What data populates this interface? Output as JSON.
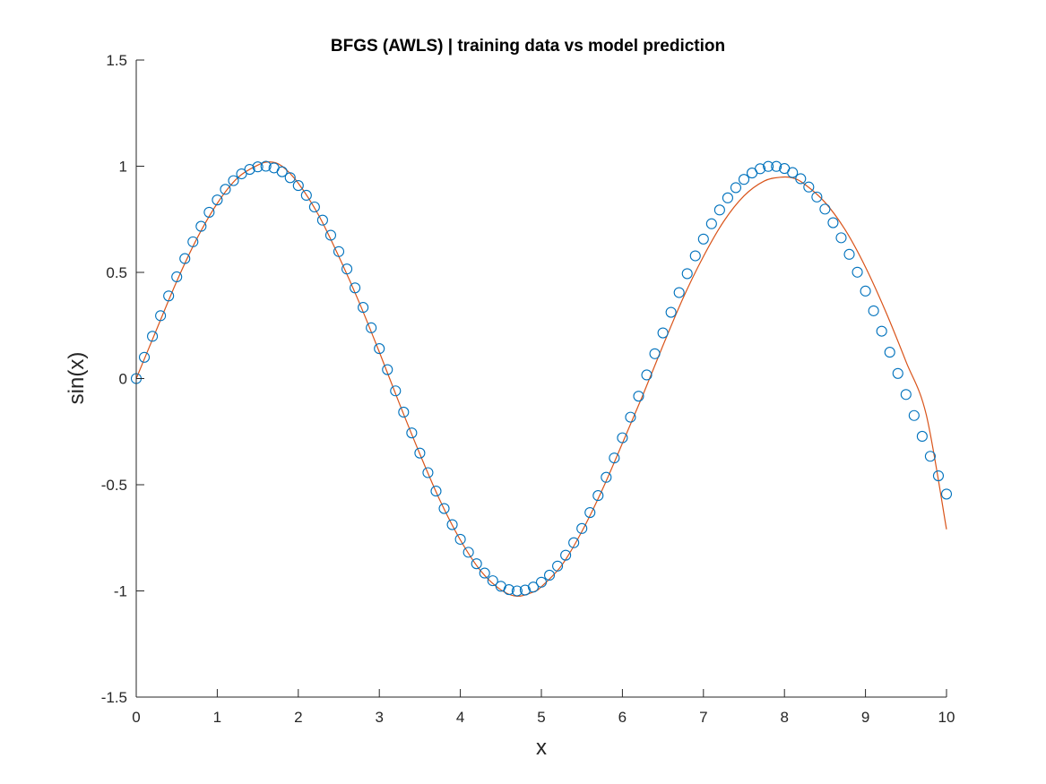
{
  "chart_data": {
    "type": "scatter",
    "title": "BFGS (AWLS) | training data vs model prediction",
    "xlabel": "x",
    "ylabel": "sin(x)",
    "xlim": [
      0,
      10
    ],
    "ylim": [
      -1.5,
      1.5
    ],
    "xticks": [
      "0",
      "1",
      "2",
      "3",
      "4",
      "5",
      "6",
      "7",
      "8",
      "9",
      "10"
    ],
    "yticks": [
      "1.5",
      "1",
      "0.5",
      "0",
      "-0.5",
      "-1",
      "-1.5"
    ],
    "grid": false,
    "legend": "none",
    "series": [
      {
        "kind": "scatter",
        "marker": "circle-open",
        "color": "#0072BD",
        "x": [
          0,
          0.1,
          0.2,
          0.3,
          0.4,
          0.5,
          0.6,
          0.7,
          0.8,
          0.9,
          1.0,
          1.1,
          1.2,
          1.3,
          1.4,
          1.5,
          1.6,
          1.7,
          1.8,
          1.9,
          2.0,
          2.1,
          2.2,
          2.3,
          2.4,
          2.5,
          2.6,
          2.7,
          2.8,
          2.9,
          3.0,
          3.1,
          3.2,
          3.3,
          3.4,
          3.5,
          3.6,
          3.7,
          3.8,
          3.9,
          4.0,
          4.1,
          4.2,
          4.3,
          4.4,
          4.5,
          4.6,
          4.7,
          4.8,
          4.9,
          5.0,
          5.1,
          5.2,
          5.3,
          5.4,
          5.5,
          5.6,
          5.7,
          5.8,
          5.9,
          6.0,
          6.1,
          6.2,
          6.3,
          6.4,
          6.5,
          6.6,
          6.7,
          6.8,
          6.9,
          7.0,
          7.1,
          7.2,
          7.3,
          7.4,
          7.5,
          7.6,
          7.7,
          7.8,
          7.9,
          8.0,
          8.1,
          8.2,
          8.3,
          8.4,
          8.5,
          8.6,
          8.7,
          8.8,
          8.9,
          9.0,
          9.1,
          9.2,
          9.3,
          9.4,
          9.5,
          9.6,
          9.7,
          9.8,
          9.9,
          10.0
        ],
        "y": [
          0.0,
          0.1,
          0.199,
          0.296,
          0.389,
          0.479,
          0.565,
          0.644,
          0.717,
          0.783,
          0.841,
          0.891,
          0.932,
          0.964,
          0.985,
          0.997,
          1.0,
          0.992,
          0.974,
          0.946,
          0.909,
          0.863,
          0.808,
          0.746,
          0.675,
          0.598,
          0.516,
          0.427,
          0.335,
          0.239,
          0.141,
          0.042,
          -0.058,
          -0.158,
          -0.256,
          -0.351,
          -0.443,
          -0.53,
          -0.612,
          -0.688,
          -0.757,
          -0.818,
          -0.872,
          -0.916,
          -0.952,
          -0.978,
          -0.994,
          -1.0,
          -0.996,
          -0.982,
          -0.959,
          -0.926,
          -0.883,
          -0.832,
          -0.773,
          -0.706,
          -0.631,
          -0.551,
          -0.465,
          -0.374,
          -0.279,
          -0.182,
          -0.083,
          0.017,
          0.117,
          0.215,
          0.312,
          0.405,
          0.494,
          0.578,
          0.657,
          0.729,
          0.794,
          0.851,
          0.899,
          0.938,
          0.968,
          0.988,
          0.999,
          0.999,
          0.989,
          0.97,
          0.941,
          0.902,
          0.855,
          0.798,
          0.734,
          0.663,
          0.585,
          0.501,
          0.412,
          0.319,
          0.223,
          0.124,
          0.024,
          -0.075,
          -0.174,
          -0.272,
          -0.366,
          -0.458,
          -0.544
        ]
      },
      {
        "kind": "line",
        "color": "#D95319",
        "x": [
          0,
          0.25,
          0.5,
          0.75,
          1.0,
          1.25,
          1.5,
          1.65,
          1.8,
          2.0,
          2.25,
          2.5,
          2.75,
          3.0,
          3.25,
          3.5,
          3.75,
          4.0,
          4.25,
          4.5,
          4.7,
          4.9,
          5.0,
          5.25,
          5.5,
          5.75,
          6.0,
          6.25,
          6.5,
          6.75,
          7.0,
          7.25,
          7.5,
          7.75,
          7.95,
          8.1,
          8.25,
          8.5,
          8.75,
          9.0,
          9.25,
          9.5,
          9.75,
          10.0
        ],
        "y": [
          0.0,
          0.23,
          0.458,
          0.66,
          0.825,
          0.945,
          1.005,
          1.02,
          1.0,
          0.92,
          0.77,
          0.575,
          0.36,
          0.125,
          -0.12,
          -0.355,
          -0.575,
          -0.76,
          -0.905,
          -0.995,
          -1.025,
          -1.005,
          -0.98,
          -0.88,
          -0.72,
          -0.525,
          -0.305,
          -0.08,
          0.155,
          0.38,
          0.575,
          0.74,
          0.86,
          0.93,
          0.948,
          0.945,
          0.915,
          0.83,
          0.7,
          0.525,
          0.315,
          0.08,
          -0.17,
          -0.71
        ]
      }
    ]
  }
}
